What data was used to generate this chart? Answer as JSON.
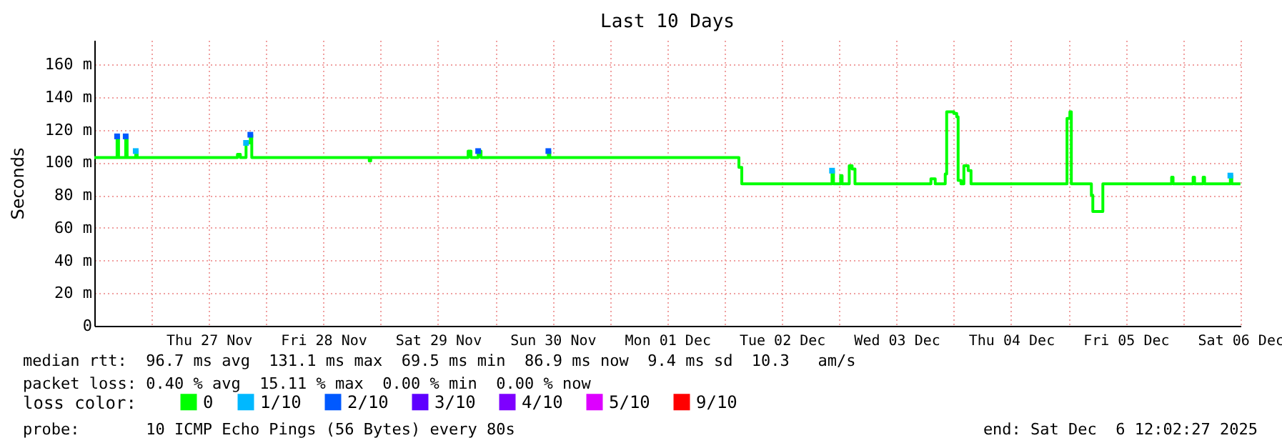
{
  "chart_data": {
    "type": "step",
    "title": "Last 10 Days",
    "ylabel": "Seconds",
    "legend_title": "loss color:",
    "legend": "bottom",
    "grid": true,
    "xlim": [
      "2025-11-26T12:02",
      "2025-12-06T12:02"
    ],
    "xticks": [
      {
        "value": "2025-11-27",
        "label": null
      },
      {
        "value": "2025-11-27T12:00",
        "label": "Thu 27 Nov"
      },
      {
        "value": "2025-11-28",
        "label": null
      },
      {
        "value": "2025-11-28T12:00",
        "label": "Fri 28 Nov"
      },
      {
        "value": "2025-11-29",
        "label": null
      },
      {
        "value": "2025-11-29T12:00",
        "label": "Sat 29 Nov"
      },
      {
        "value": "2025-11-30",
        "label": null
      },
      {
        "value": "2025-11-30T12:00",
        "label": "Sun 30 Nov"
      },
      {
        "value": "2025-12-01",
        "label": null
      },
      {
        "value": "2025-12-01T12:00",
        "label": "Mon 01 Dec"
      },
      {
        "value": "2025-12-02",
        "label": null
      },
      {
        "value": "2025-12-02T12:00",
        "label": "Tue 02 Dec"
      },
      {
        "value": "2025-12-03",
        "label": null
      },
      {
        "value": "2025-12-03T12:00",
        "label": "Wed 03 Dec"
      },
      {
        "value": "2025-12-04",
        "label": null
      },
      {
        "value": "2025-12-04T12:00",
        "label": "Thu 04 Dec"
      },
      {
        "value": "2025-12-05",
        "label": null
      },
      {
        "value": "2025-12-05T12:00",
        "label": "Fri 05 Dec"
      },
      {
        "value": "2025-12-06",
        "label": null
      },
      {
        "value": "2025-12-06T12:00",
        "label": "Sat 06 Dec"
      }
    ],
    "ylim": [
      0,
      175
    ],
    "yticks": [
      0,
      {
        "value": 20,
        "label": "20 m"
      },
      {
        "value": 40,
        "label": "40 m"
      },
      {
        "value": 60,
        "label": "60 m"
      },
      {
        "value": 80,
        "label": "80 m"
      },
      {
        "value": 100,
        "label": "100 m"
      },
      {
        "value": 120,
        "label": "120 m"
      },
      {
        "value": 140,
        "label": "140 m"
      },
      {
        "value": 160,
        "label": "160 m"
      }
    ],
    "series": [
      {
        "name": "0",
        "color": "#00ff00",
        "x": [
          "2025-11-26T12:02",
          "2025-11-26T16:30",
          "2025-11-26T16:48",
          "2025-11-26T17:06",
          "2025-11-26T18:36",
          "2025-11-26T18:54",
          "2025-11-26T20:42",
          "2025-11-26T21:00",
          "2025-11-27T17:42",
          "2025-11-27T18:00",
          "2025-11-27T18:36",
          "2025-11-27T19:48",
          "2025-11-27T20:42",
          "2025-11-27T21:00",
          "2025-11-28T21:18",
          "2025-11-28T21:36",
          "2025-11-28T21:54",
          "2025-11-29T18:00",
          "2025-11-29T18:18",
          "2025-11-29T18:54",
          "2025-11-29T20:24",
          "2025-11-29T21:00",
          "2025-11-30T10:48",
          "2025-11-30T11:06",
          "2025-11-30T11:24",
          "2025-12-02T02:24",
          "2025-12-02T03:00",
          "2025-12-02T03:36",
          "2025-12-02T22:12",
          "2025-12-02T22:30",
          "2025-12-02T22:48",
          "2025-12-03T00:18",
          "2025-12-03T00:36",
          "2025-12-03T02:06",
          "2025-12-03T02:42",
          "2025-12-03T03:18",
          "2025-12-03T19:12",
          "2025-12-03T20:06",
          "2025-12-03T22:12",
          "2025-12-03T22:30",
          "2025-12-04T00:00",
          "2025-12-04T00:36",
          "2025-12-04T00:54",
          "2025-12-04T01:30",
          "2025-12-04T02:06",
          "2025-12-04T03:00",
          "2025-12-04T03:36",
          "2025-12-04T23:24",
          "2025-12-04T23:42",
          "2025-12-05T00:18",
          "2025-12-05T00:36",
          "2025-12-05T04:30",
          "2025-12-05T04:48",
          "2025-12-05T05:06",
          "2025-12-05T06:54",
          "2025-12-05T07:12",
          "2025-12-05T21:18",
          "2025-12-05T21:36",
          "2025-12-05T21:54",
          "2025-12-06T01:48",
          "2025-12-06T02:06",
          "2025-12-06T02:24",
          "2025-12-06T04:12",
          "2025-12-06T04:30",
          "2025-12-06T09:54",
          "2025-12-06T10:12",
          "2025-12-06T12:00"
        ],
        "values": [
          103,
          103,
          116,
          103,
          116,
          103,
          107,
          103,
          103,
          105,
          103,
          112,
          117,
          103,
          103,
          101,
          103,
          103,
          107,
          103,
          107,
          103,
          103,
          107,
          103,
          103,
          97,
          87,
          87,
          95,
          87,
          92,
          87,
          98,
          96,
          87,
          90,
          87,
          93,
          131,
          130,
          128,
          89,
          87,
          98,
          95,
          87,
          87,
          127,
          131,
          87,
          87,
          80,
          70,
          70,
          87,
          87,
          91,
          87,
          87,
          91,
          87,
          91,
          87,
          92,
          87,
          87
        ]
      },
      {
        "name": "1/10",
        "color": "#00b8ff",
        "type": "scatter",
        "marker": "square",
        "x": [
          "2025-11-26T20:42",
          "2025-11-27T19:48",
          "2025-12-02T22:30",
          "2025-12-06T09:54"
        ],
        "values": [
          107,
          112,
          95,
          92
        ]
      },
      {
        "name": "2/10",
        "color": "#0059ff",
        "type": "scatter",
        "marker": "square",
        "x": [
          "2025-11-26T16:48",
          "2025-11-26T18:36",
          "2025-11-27T20:42",
          "2025-11-29T20:24",
          "2025-11-30T11:06"
        ],
        "values": [
          116,
          116,
          117,
          107,
          107
        ]
      },
      {
        "name": "3/10",
        "color": "#5e00ff",
        "type": "scatter",
        "marker": "square"
      },
      {
        "name": "4/10",
        "color": "#7e00ff",
        "type": "scatter",
        "marker": "square"
      },
      {
        "name": "5/10",
        "color": "#dd00ff",
        "type": "scatter",
        "marker": "square"
      },
      {
        "name": "9/10",
        "color": "#ff0000",
        "type": "scatter",
        "marker": "square"
      }
    ],
    "annotations": [
      "median rtt:  96.7 ms avg  131.1 ms max  69.5 ms min  86.9 ms now  9.4 ms sd  10.3   am/s",
      "packet loss: 0.40 % avg  15.11 % max  0.00 % min  0.00 % now",
      "probe:       10 ICMP Echo Pings (56 Bytes) every 80s",
      "end: Sat Dec  6 12:02:27 2025"
    ]
  }
}
